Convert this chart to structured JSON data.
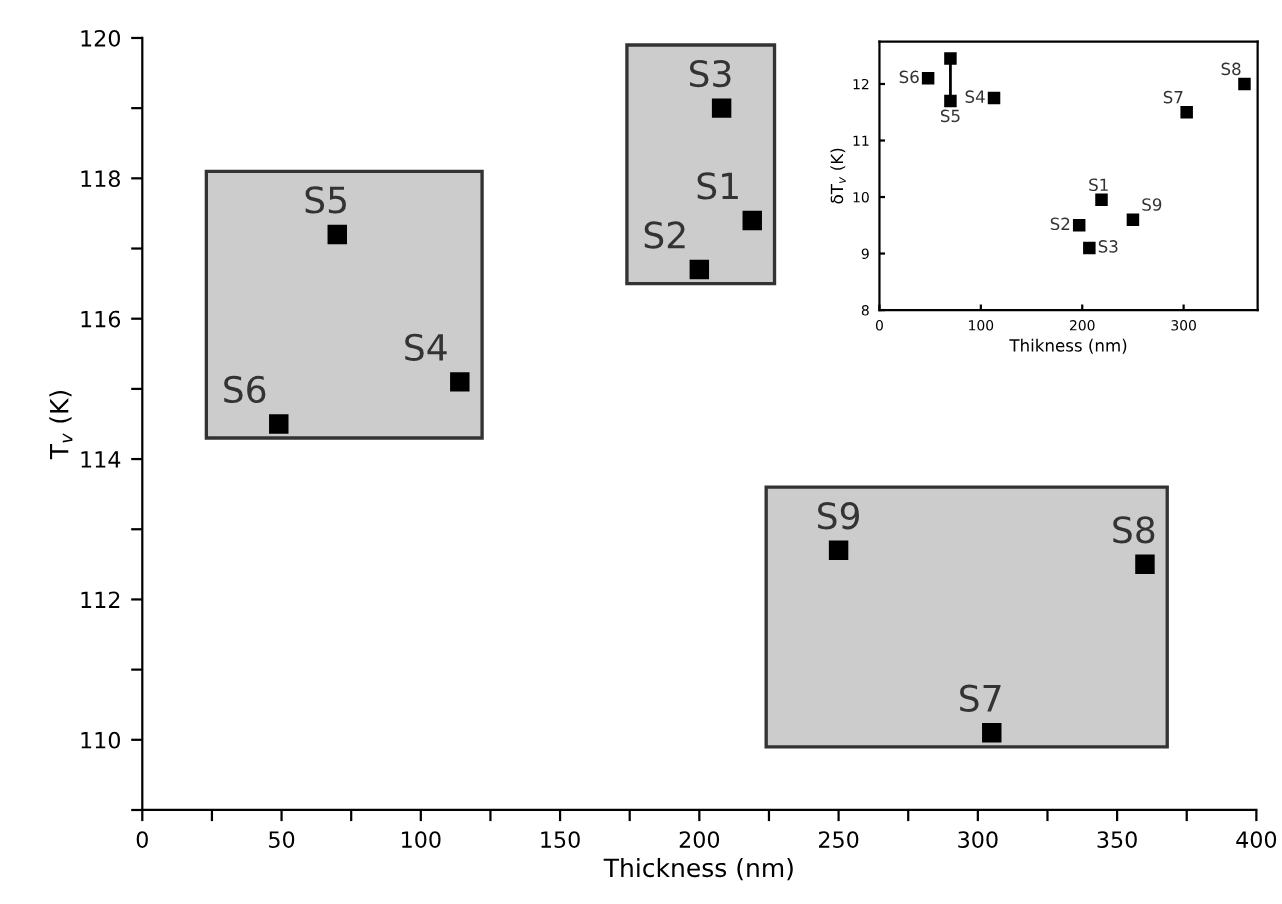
{
  "chart_data": [
    {
      "type": "scatter",
      "xlabel": "Thickness (nm)",
      "ylabel": "T$_{v}$ (K)",
      "xlim": [
        0,
        400
      ],
      "ylim": [
        109,
        120
      ],
      "xticks": [
        0,
        {
          "value": 25,
          "label": null
        },
        50,
        {
          "value": 75,
          "label": null
        },
        100,
        {
          "value": 125,
          "label": null
        },
        150,
        {
          "value": 175,
          "label": null
        },
        200,
        {
          "value": 225,
          "label": null
        },
        250,
        {
          "value": 275,
          "label": null
        },
        300,
        {
          "value": 325,
          "label": null
        },
        350,
        {
          "value": 375,
          "label": null
        },
        400
      ],
      "yticks": [
        {
          "value": 109,
          "label": null
        },
        110,
        {
          "value": 111,
          "label": null
        },
        112,
        {
          "value": 113,
          "label": null
        },
        114,
        {
          "value": 115,
          "label": null
        },
        116,
        {
          "value": 117,
          "label": null
        },
        118,
        {
          "value": 119,
          "label": null
        },
        120
      ],
      "marker": "square",
      "grid": false,
      "legend": false,
      "series": [
        {
          "color": "#000000",
          "x": [
            219,
            200,
            208,
            114,
            70,
            49,
            305,
            360,
            250
          ],
          "values": [
            117.4,
            116.7,
            119.0,
            115.1,
            117.2,
            114.5,
            110.1,
            112.5,
            112.7
          ]
        }
      ],
      "annotations": [
        {
          "text": "S1",
          "x": 219,
          "y": 117.4
        },
        {
          "text": "S2",
          "x": 200,
          "y": 116.7
        },
        {
          "text": "S3",
          "x": 208,
          "y": 119.0
        },
        {
          "text": "S4",
          "x": 114,
          "y": 115.1
        },
        {
          "text": "S5",
          "x": 70,
          "y": 117.2
        },
        {
          "text": "S6",
          "x": 49,
          "y": 114.5
        },
        {
          "text": "S7",
          "x": 305,
          "y": 110.1
        },
        {
          "text": "S8",
          "x": 360,
          "y": 112.5
        },
        {
          "text": "S9",
          "x": 250,
          "y": 112.7
        }
      ]
    },
    {
      "type": "scatter",
      "xlabel": "Thikness (nm)",
      "ylabel": "δT$_{v}$ (K)",
      "xlim": [
        0,
        373
      ],
      "ylim": [
        8,
        12.75
      ],
      "xticks": [
        0,
        100,
        200,
        300
      ],
      "yticks": [
        8,
        9,
        10,
        11,
        12
      ],
      "marker": "square",
      "grid": false,
      "legend": false,
      "series": [
        {
          "color": "#000000",
          "x": [
            219,
            197,
            207,
            113,
            70,
            48,
            303,
            360,
            250,
            70
          ],
          "values": [
            9.95,
            9.5,
            9.1,
            11.75,
            11.7,
            12.1,
            11.5,
            12.0,
            9.6,
            12.45
          ]
        },
        {
          "type": "line",
          "marker": "none",
          "color": "#000000",
          "x": [
            70,
            70
          ],
          "values": [
            12.45,
            11.7
          ]
        }
      ],
      "annotations": [
        {
          "text": "S1",
          "x": 219,
          "y": 9.95
        },
        {
          "text": "S2",
          "x": 197,
          "y": 9.5
        },
        {
          "text": "S3",
          "x": 207,
          "y": 9.1
        },
        {
          "text": "S4",
          "x": 113,
          "y": 11.75
        },
        {
          "text": "S5",
          "x": 70,
          "y": 11.7
        },
        {
          "text": "S6",
          "x": 48,
          "y": 12.1
        },
        {
          "text": "S7",
          "x": 303,
          "y": 11.5
        },
        {
          "text": "S8",
          "x": 360,
          "y": 12.0
        },
        {
          "text": "S9",
          "x": 250,
          "y": 9.6
        }
      ]
    }
  ]
}
